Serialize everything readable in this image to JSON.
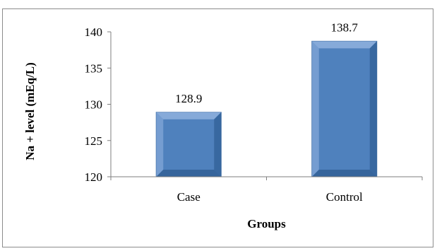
{
  "chart_data": {
    "type": "bar",
    "categories": [
      "Case",
      "Control"
    ],
    "values": [
      128.9,
      138.7
    ],
    "data_labels": [
      "128.9",
      "138.7"
    ],
    "title": "",
    "xlabel": "Groups",
    "ylabel": "Na + level  (mEq/L)",
    "ylim": [
      120,
      140
    ],
    "yticks": [
      "120",
      "125",
      "130",
      "135",
      "140"
    ],
    "grid": false,
    "legend": "none",
    "bar_color": "#4f81bd",
    "bar_dark": "#2f5e94",
    "bar_light": "#8fb1de"
  }
}
